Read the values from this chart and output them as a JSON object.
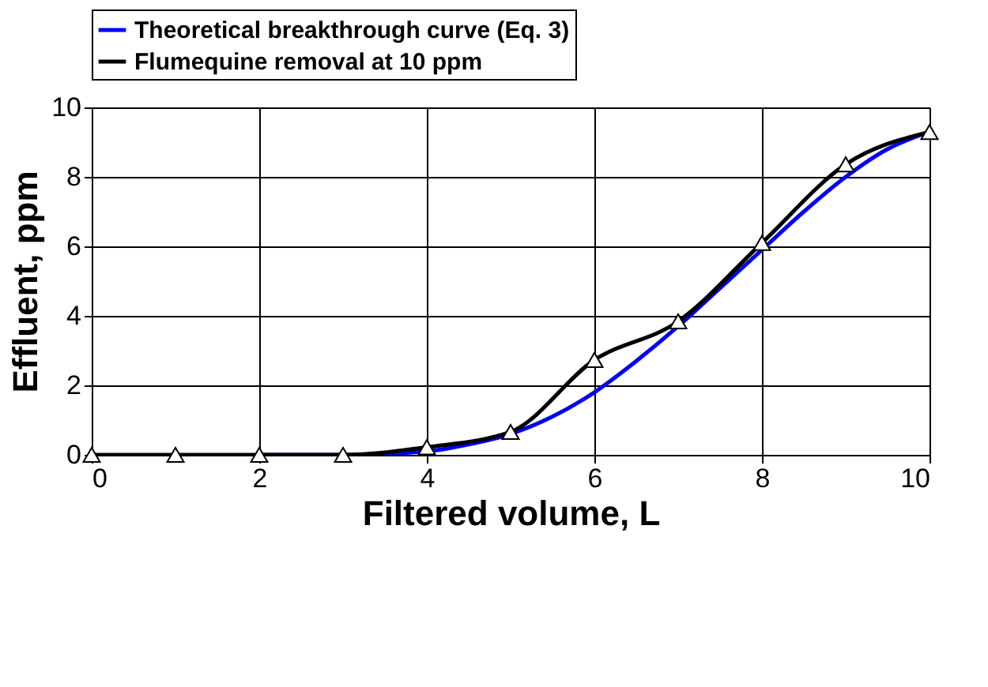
{
  "chart_data": {
    "type": "line",
    "xlabel": "Filtered volume, L",
    "ylabel": "Effluent, ppm",
    "xlim": [
      0,
      10
    ],
    "xticks": [
      0,
      2,
      4,
      6,
      8,
      10
    ],
    "ylim": [
      0,
      10
    ],
    "yticks": [
      0,
      2,
      4,
      6,
      8,
      10
    ],
    "grid": true,
    "legend": "top",
    "series": [
      {
        "name": "Theoretical breakthrough curve (Eq. 3)",
        "color": "#0000ff",
        "marker": "none",
        "x": [
          2,
          3,
          4,
          4.5,
          5,
          5.5,
          6,
          6.5,
          7,
          7.5,
          8,
          8.5,
          9,
          9.5,
          10
        ],
        "values": [
          0,
          0,
          0.1,
          0.3,
          0.6,
          1.1,
          1.8,
          2.7,
          3.7,
          4.8,
          5.9,
          7.0,
          8.0,
          8.8,
          9.3
        ]
      },
      {
        "name": "Flumequine removal at 10 ppm",
        "color": "#000000",
        "marker": "triangle",
        "x": [
          0,
          1,
          2,
          3,
          4,
          5,
          6,
          7,
          8,
          9,
          10
        ],
        "values": [
          0,
          0,
          0,
          0,
          0.22,
          0.66,
          2.73,
          3.84,
          6.1,
          8.36,
          9.29
        ]
      }
    ]
  }
}
